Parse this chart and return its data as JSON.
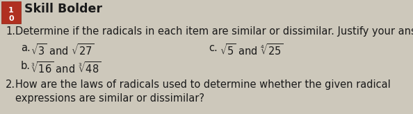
{
  "bg_color": "#cdc8bb",
  "header_bg": "#b03020",
  "header_text": "Skill Bolder",
  "header_text_color": "#1a1a1a",
  "header_number_top": "1",
  "header_number_bot": "0",
  "text_color": "#1a1a1a",
  "q1_prefix": "1.",
  "q1_text": "Determine if the radicals in each item are similar or dissimilar. Justify your answer.",
  "item_a_label": "a.",
  "item_b_label": "b.",
  "item_c_label": "c.",
  "item_a_math": "$\\sqrt{3}$ and $\\sqrt{27}$",
  "item_b_math": "$\\sqrt[3]{16}$ and $\\sqrt[3]{48}$",
  "item_c_math": "$\\sqrt{5}$ and $\\sqrt[4]{25}$",
  "q2_prefix": "2.",
  "q2_line1": "How are the laws of radicals used to determine whether the given radical",
  "q2_line2": "expressions are similar or dissimilar?",
  "font_size_body": 10.5,
  "font_size_header": 12.5,
  "font_size_small": 8.0
}
